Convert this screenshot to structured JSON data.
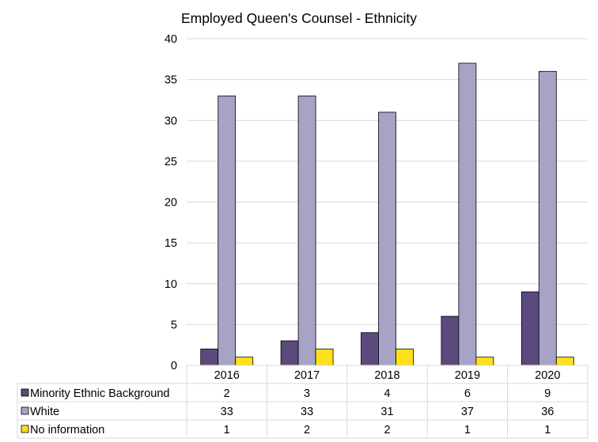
{
  "chart_data": {
    "type": "bar",
    "title": "Employed Queen's Counsel - Ethnicity",
    "categories": [
      "2016",
      "2017",
      "2018",
      "2019",
      "2020"
    ],
    "series": [
      {
        "name": "Minority Ethnic Background",
        "values": [
          2,
          3,
          4,
          6,
          9
        ],
        "color": "#5b4a7d"
      },
      {
        "name": "White",
        "values": [
          33,
          33,
          31,
          37,
          36
        ],
        "color": "#a6a3c7"
      },
      {
        "name": "No information",
        "values": [
          1,
          2,
          2,
          1,
          1
        ],
        "color": "#ffe01a"
      }
    ],
    "ylim": [
      0,
      40
    ],
    "yticks": [
      0,
      5,
      10,
      15,
      20,
      25,
      30,
      35,
      40
    ],
    "grid": true,
    "legend": "data-table-bottom"
  }
}
